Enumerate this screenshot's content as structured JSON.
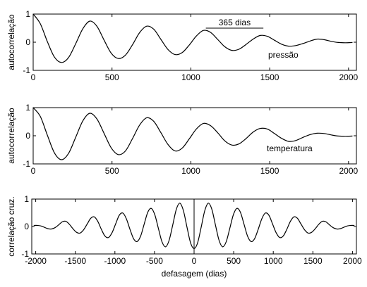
{
  "chart_data": [
    {
      "type": "line",
      "ylabel": "autocorrelação",
      "label": "pressão",
      "color": "#000000",
      "annotation": {
        "text": "365 dias",
        "x": [
          1095,
          1460
        ],
        "y": 0.5
      },
      "xlim": [
        0,
        2050
      ],
      "xticks": [
        0,
        500,
        1000,
        1500,
        2000
      ],
      "ylim": [
        -1,
        1
      ],
      "yticks": [
        -1,
        0,
        1
      ],
      "x": [
        0,
        45,
        90,
        135,
        180,
        225,
        270,
        315,
        360,
        405,
        450,
        495,
        540,
        585,
        630,
        675,
        720,
        765,
        810,
        855,
        900,
        945,
        990,
        1035,
        1080,
        1125,
        1170,
        1215,
        1260,
        1305,
        1350,
        1395,
        1440,
        1485,
        1530,
        1575,
        1620,
        1665,
        1710,
        1755,
        1800,
        1845,
        1890,
        1935,
        1980,
        2025
      ],
      "values": [
        1.0,
        0.66,
        0.02,
        -0.53,
        -0.72,
        -0.54,
        -0.05,
        0.48,
        0.75,
        0.56,
        0.07,
        -0.39,
        -0.58,
        -0.46,
        -0.09,
        0.34,
        0.57,
        0.46,
        0.1,
        -0.26,
        -0.44,
        -0.37,
        -0.1,
        0.22,
        0.42,
        0.35,
        0.1,
        -0.16,
        -0.29,
        -0.25,
        -0.08,
        0.11,
        0.24,
        0.21,
        0.07,
        -0.07,
        -0.14,
        -0.12,
        -0.05,
        0.04,
        0.11,
        0.09,
        0.03,
        -0.01,
        -0.02,
        -0.01
      ]
    },
    {
      "type": "line",
      "ylabel": "autocorrelação",
      "label": "temperatura",
      "color": "#000000",
      "xlim": [
        0,
        2050
      ],
      "xticks": [
        0,
        500,
        1000,
        1500,
        2000
      ],
      "ylim": [
        -1,
        1
      ],
      "yticks": [
        -1,
        0,
        1
      ],
      "x": [
        0,
        45,
        90,
        135,
        180,
        225,
        270,
        315,
        360,
        405,
        450,
        495,
        540,
        585,
        630,
        675,
        720,
        765,
        810,
        855,
        900,
        945,
        990,
        1035,
        1080,
        1125,
        1170,
        1215,
        1260,
        1305,
        1350,
        1395,
        1440,
        1485,
        1530,
        1575,
        1620,
        1665,
        1710,
        1755,
        1800,
        1845,
        1890,
        1935,
        1980,
        2025
      ],
      "values": [
        1.0,
        0.69,
        0.02,
        -0.61,
        -0.85,
        -0.62,
        -0.05,
        0.53,
        0.8,
        0.59,
        0.08,
        -0.43,
        -0.67,
        -0.54,
        -0.1,
        0.38,
        0.64,
        0.51,
        0.11,
        -0.31,
        -0.54,
        -0.44,
        -0.11,
        0.24,
        0.44,
        0.36,
        0.11,
        -0.18,
        -0.33,
        -0.29,
        -0.1,
        0.13,
        0.26,
        0.24,
        0.08,
        -0.09,
        -0.2,
        -0.17,
        -0.06,
        0.04,
        0.09,
        0.08,
        0.03,
        -0.01,
        -0.02,
        -0.01
      ]
    },
    {
      "type": "line",
      "ylabel": "correlação cruz.",
      "xlabel": "defasagem (dias)",
      "color": "#000000",
      "vline": 0,
      "xlim": [
        -2050,
        2050
      ],
      "xticks": [
        -2000,
        -1500,
        -1000,
        -500,
        0,
        500,
        1000,
        1500,
        2000
      ],
      "ylim": [
        -1,
        1
      ],
      "yticks": [
        -1,
        0,
        1
      ],
      "x": [
        -2025,
        -1980,
        -1935,
        -1890,
        -1845,
        -1800,
        -1755,
        -1710,
        -1665,
        -1620,
        -1575,
        -1530,
        -1485,
        -1440,
        -1395,
        -1350,
        -1305,
        -1260,
        -1215,
        -1170,
        -1125,
        -1080,
        -1035,
        -990,
        -945,
        -900,
        -855,
        -810,
        -765,
        -720,
        -675,
        -630,
        -585,
        -540,
        -495,
        -450,
        -405,
        -360,
        -315,
        -270,
        -225,
        -180,
        -135,
        -90,
        -45,
        0,
        45,
        90,
        135,
        180,
        225,
        270,
        315,
        360,
        405,
        450,
        495,
        540,
        585,
        630,
        675,
        720,
        765,
        810,
        855,
        900,
        945,
        990,
        1035,
        1080,
        1125,
        1170,
        1215,
        1260,
        1305,
        1350,
        1395,
        1440,
        1485,
        1530,
        1575,
        1620,
        1665,
        1710,
        1755,
        1800,
        1845,
        1890,
        1935,
        1980,
        2025
      ],
      "values": [
        0.04,
        0.04,
        0.02,
        -0.03,
        -0.08,
        -0.09,
        -0.04,
        0.06,
        0.17,
        0.19,
        0.08,
        -0.08,
        -0.21,
        -0.24,
        -0.12,
        0.09,
        0.3,
        0.35,
        0.18,
        -0.11,
        -0.35,
        -0.4,
        -0.22,
        0.1,
        0.41,
        0.49,
        0.28,
        -0.1,
        -0.44,
        -0.55,
        -0.35,
        0.09,
        0.52,
        0.66,
        0.42,
        -0.08,
        -0.56,
        -0.74,
        -0.5,
        0.05,
        0.62,
        0.85,
        0.58,
        -0.02,
        -0.59,
        -0.8,
        -0.59,
        -0.02,
        0.58,
        0.85,
        0.62,
        0.05,
        -0.5,
        -0.74,
        -0.56,
        -0.08,
        0.42,
        0.66,
        0.52,
        0.09,
        -0.35,
        -0.55,
        -0.44,
        -0.1,
        0.28,
        0.49,
        0.41,
        0.1,
        -0.22,
        -0.4,
        -0.35,
        -0.11,
        0.18,
        0.35,
        0.3,
        0.09,
        -0.12,
        -0.24,
        -0.21,
        -0.08,
        0.08,
        0.19,
        0.17,
        0.06,
        -0.04,
        -0.09,
        -0.08,
        -0.03,
        0.02,
        0.04,
        0.04
      ]
    }
  ]
}
